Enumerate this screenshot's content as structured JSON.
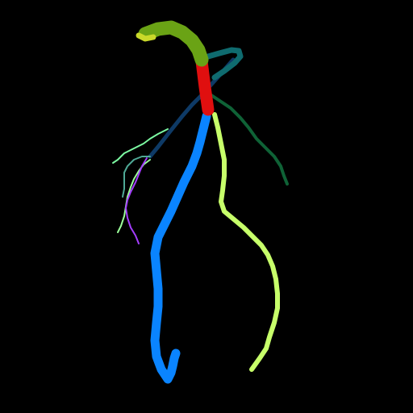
{
  "image": {
    "background": "#000000",
    "segments": [
      {
        "id": "seed-top",
        "color": "#c9d92a"
      },
      {
        "id": "primary-green",
        "color": "#6aa315"
      },
      {
        "id": "primary-red",
        "color": "#e00f0f"
      },
      {
        "id": "teal-branch",
        "color": "#0f6b6f"
      },
      {
        "id": "navy-branch",
        "color": "#0e3a66"
      },
      {
        "id": "darkgreen-branch",
        "color": "#0f6236"
      },
      {
        "id": "blue-main",
        "color": "#0a84ff"
      },
      {
        "id": "lime-main",
        "color": "#c7ff6a"
      },
      {
        "id": "mint-branch",
        "color": "#7cf9a2"
      },
      {
        "id": "seafoam-branch",
        "color": "#4fa996"
      },
      {
        "id": "violet-branch",
        "color": "#a43dff"
      },
      {
        "id": "light-mint-branch",
        "color": "#9bff9a"
      }
    ]
  }
}
